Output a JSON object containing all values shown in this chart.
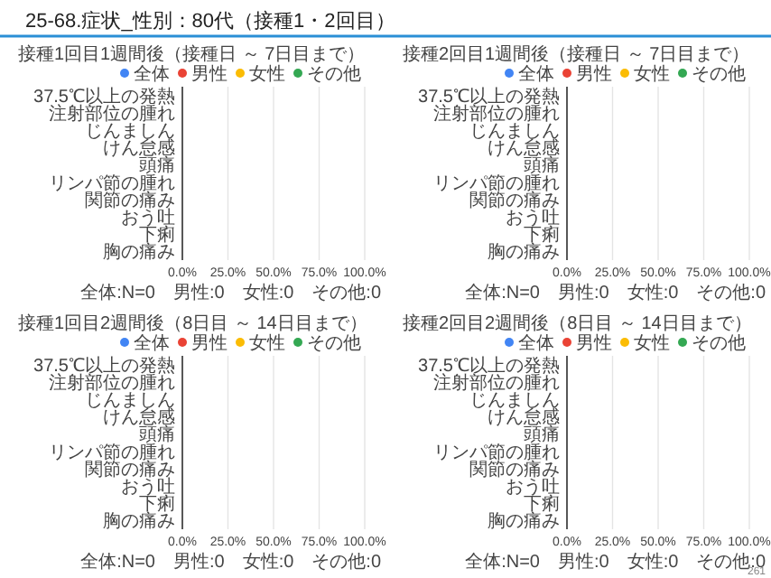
{
  "chart_data": [
    {
      "type": "bar",
      "orientation": "horizontal",
      "title": "接種1回目1週間後（接種日 ～ 7日目まで）",
      "annotations": [
        "25-68.症状_性別：80代（接種1・2回目）",
        "全体:N=0　男性:0　女性:0　その他:0"
      ],
      "categories": [
        "37.5℃以上の発熱",
        "注射部位の腫れ",
        "じんましん",
        "けん怠感",
        "頭痛",
        "リンパ節の腫れ",
        "関節の痛み",
        "おう吐",
        "下痢",
        "胸の痛み"
      ],
      "series": [
        {
          "name": "全体",
          "color": "#4285f4",
          "values": [
            0,
            0,
            0,
            0,
            0,
            0,
            0,
            0,
            0,
            0
          ]
        },
        {
          "name": "男性",
          "color": "#ea4335",
          "values": [
            0,
            0,
            0,
            0,
            0,
            0,
            0,
            0,
            0,
            0
          ]
        },
        {
          "name": "女性",
          "color": "#fbbc04",
          "values": [
            0,
            0,
            0,
            0,
            0,
            0,
            0,
            0,
            0,
            0
          ]
        },
        {
          "name": "その他",
          "color": "#34a853",
          "values": [
            0,
            0,
            0,
            0,
            0,
            0,
            0,
            0,
            0,
            0
          ]
        }
      ],
      "xlim": [
        0,
        100
      ],
      "xticks": [
        {
          "value": 0,
          "label": "0.0%"
        },
        {
          "value": 25,
          "label": "25.0%"
        },
        {
          "value": 50,
          "label": "50.0%"
        },
        {
          "value": 75,
          "label": "75.0%"
        },
        {
          "value": 100,
          "label": "100.0%"
        }
      ],
      "grid": "x",
      "legend": "top"
    },
    {
      "type": "bar",
      "orientation": "horizontal",
      "title": "接種2回目1週間後（接種日 ～ 7日目まで）",
      "annotations": [
        "全体:N=0　男性:0　女性:0　その他:0"
      ],
      "categories": [
        "37.5℃以上の発熱",
        "注射部位の腫れ",
        "じんましん",
        "けん怠感",
        "頭痛",
        "リンパ節の腫れ",
        "関節の痛み",
        "おう吐",
        "下痢",
        "胸の痛み"
      ],
      "series": [
        {
          "name": "全体",
          "color": "#4285f4",
          "values": [
            0,
            0,
            0,
            0,
            0,
            0,
            0,
            0,
            0,
            0
          ]
        },
        {
          "name": "男性",
          "color": "#ea4335",
          "values": [
            0,
            0,
            0,
            0,
            0,
            0,
            0,
            0,
            0,
            0
          ]
        },
        {
          "name": "女性",
          "color": "#fbbc04",
          "values": [
            0,
            0,
            0,
            0,
            0,
            0,
            0,
            0,
            0,
            0
          ]
        },
        {
          "name": "その他",
          "color": "#34a853",
          "values": [
            0,
            0,
            0,
            0,
            0,
            0,
            0,
            0,
            0,
            0
          ]
        }
      ],
      "xlim": [
        0,
        100
      ],
      "xticks": [
        {
          "value": 0,
          "label": "0.0%"
        },
        {
          "value": 25,
          "label": "25.0%"
        },
        {
          "value": 50,
          "label": "50.0%"
        },
        {
          "value": 75,
          "label": "75.0%"
        },
        {
          "value": 100,
          "label": "100.0%"
        }
      ],
      "grid": "x",
      "legend": "top"
    },
    {
      "type": "bar",
      "orientation": "horizontal",
      "title": "接種1回目2週間後（8日目 ～ 14日目まで）",
      "annotations": [
        "全体:N=0　男性:0　女性:0　その他:0"
      ],
      "categories": [
        "37.5℃以上の発熱",
        "注射部位の腫れ",
        "じんましん",
        "けん怠感",
        "頭痛",
        "リンパ節の腫れ",
        "関節の痛み",
        "おう吐",
        "下痢",
        "胸の痛み"
      ],
      "series": [
        {
          "name": "全体",
          "color": "#4285f4",
          "values": [
            0,
            0,
            0,
            0,
            0,
            0,
            0,
            0,
            0,
            0
          ]
        },
        {
          "name": "男性",
          "color": "#ea4335",
          "values": [
            0,
            0,
            0,
            0,
            0,
            0,
            0,
            0,
            0,
            0
          ]
        },
        {
          "name": "女性",
          "color": "#fbbc04",
          "values": [
            0,
            0,
            0,
            0,
            0,
            0,
            0,
            0,
            0,
            0
          ]
        },
        {
          "name": "その他",
          "color": "#34a853",
          "values": [
            0,
            0,
            0,
            0,
            0,
            0,
            0,
            0,
            0,
            0
          ]
        }
      ],
      "xlim": [
        0,
        100
      ],
      "xticks": [
        {
          "value": 0,
          "label": "0.0%"
        },
        {
          "value": 25,
          "label": "25.0%"
        },
        {
          "value": 50,
          "label": "50.0%"
        },
        {
          "value": 75,
          "label": "75.0%"
        },
        {
          "value": 100,
          "label": "100.0%"
        }
      ],
      "grid": "x",
      "legend": "top"
    },
    {
      "type": "bar",
      "orientation": "horizontal",
      "title": "接種2回目2週間後（8日目 ～ 14日目まで）",
      "annotations": [
        "全体:N=0　男性:0　女性:0　その他:0",
        "261"
      ],
      "categories": [
        "37.5℃以上の発熱",
        "注射部位の腫れ",
        "じんましん",
        "けん怠感",
        "頭痛",
        "リンパ節の腫れ",
        "関節の痛み",
        "おう吐",
        "下痢",
        "胸の痛み"
      ],
      "series": [
        {
          "name": "全体",
          "color": "#4285f4",
          "values": [
            0,
            0,
            0,
            0,
            0,
            0,
            0,
            0,
            0,
            0
          ]
        },
        {
          "name": "男性",
          "color": "#ea4335",
          "values": [
            0,
            0,
            0,
            0,
            0,
            0,
            0,
            0,
            0,
            0
          ]
        },
        {
          "name": "女性",
          "color": "#fbbc04",
          "values": [
            0,
            0,
            0,
            0,
            0,
            0,
            0,
            0,
            0,
            0
          ]
        },
        {
          "name": "その他",
          "color": "#34a853",
          "values": [
            0,
            0,
            0,
            0,
            0,
            0,
            0,
            0,
            0,
            0
          ]
        }
      ],
      "xlim": [
        0,
        100
      ],
      "xticks": [
        {
          "value": 0,
          "label": "0.0%"
        },
        {
          "value": 25,
          "label": "25.0%"
        },
        {
          "value": 50,
          "label": "50.0%"
        },
        {
          "value": 75,
          "label": "75.0%"
        },
        {
          "value": 100,
          "label": "100.0%"
        }
      ],
      "grid": "x",
      "legend": "top"
    }
  ]
}
